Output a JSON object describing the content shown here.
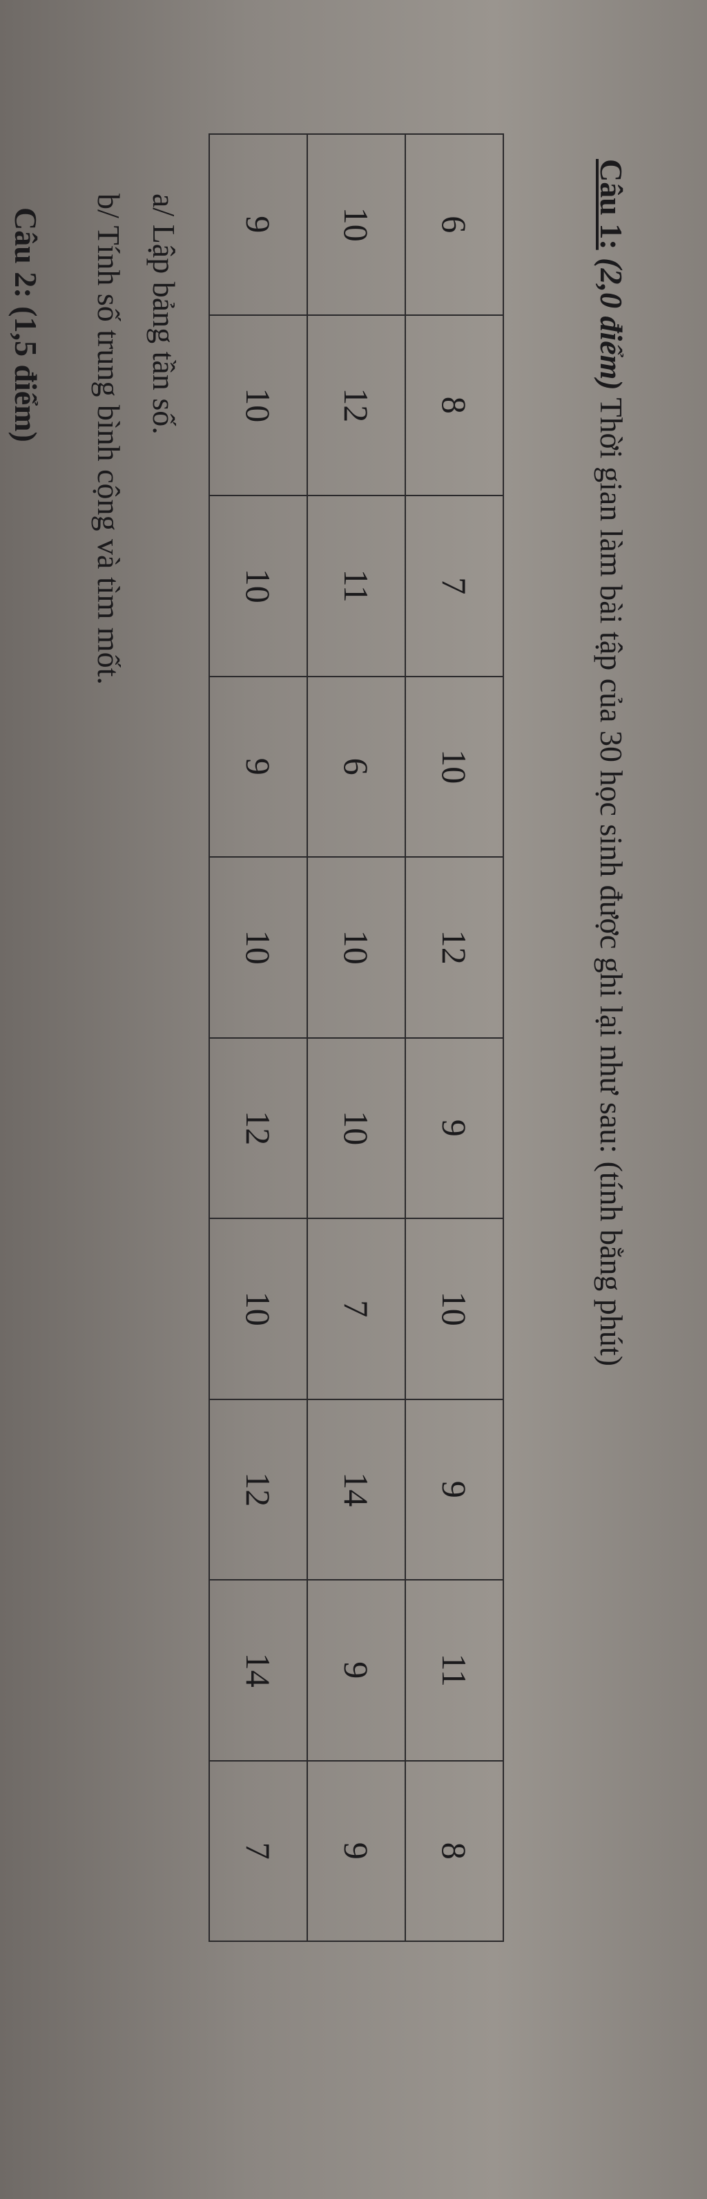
{
  "question1": {
    "label": "Câu 1:",
    "points": "(2,0 điểm)",
    "text": "Thời gian làm bài tập của 30 học sinh được ghi lại như sau: (tính bằng phút)",
    "table": {
      "rows": [
        [
          6,
          8,
          7,
          10,
          12,
          9,
          10,
          9,
          11,
          8
        ],
        [
          10,
          12,
          11,
          6,
          10,
          10,
          7,
          14,
          9,
          9
        ],
        [
          9,
          10,
          10,
          9,
          10,
          12,
          10,
          12,
          14,
          7
        ]
      ]
    },
    "parts": [
      "a/ Lập bảng tần số.",
      "b/ Tính số trung bình cộng và tìm mốt."
    ]
  },
  "question2": {
    "label": "Câu 2: (1,5 điểm)"
  }
}
